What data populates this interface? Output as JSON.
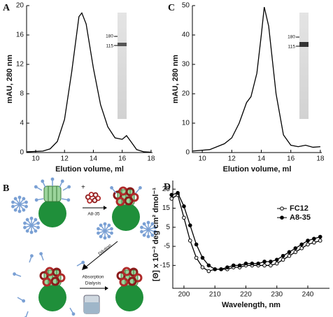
{
  "chart_data": [
    {
      "panel": "A",
      "type": "line",
      "xlabel": "Elution volume, ml",
      "ylabel": "mAU, 280 nm",
      "annotations": [
        "180",
        "115"
      ],
      "x": [
        9.4,
        10.5,
        11,
        11.5,
        12,
        12.5,
        13,
        13.2,
        13.5,
        14,
        14.5,
        15,
        15.5,
        16,
        16.3,
        16.6,
        17,
        17.5,
        18
      ],
      "values": [
        0.1,
        0.2,
        0.5,
        1.5,
        4.5,
        11,
        18.5,
        19,
        17.5,
        11.5,
        6.5,
        3.5,
        2,
        1.8,
        2.3,
        1.5,
        0.4,
        0.1,
        0.05
      ],
      "color": "#000000",
      "xlim": [
        9.37,
        18.1
      ],
      "ylim": [
        0,
        20
      ],
      "xticks": [
        10,
        12,
        14,
        16,
        18
      ],
      "yticks": [
        0,
        4,
        8,
        12,
        16,
        20
      ]
    },
    {
      "panel": "C",
      "type": "line",
      "xlabel": "Elution volume, ml",
      "ylabel": "mAU, 280 nm",
      "annotations": [
        "180",
        "115"
      ],
      "x": [
        9.33,
        10.5,
        11.5,
        12,
        12.5,
        13,
        13.3,
        13.7,
        14,
        14.2,
        14.5,
        15,
        15.5,
        16,
        16.5,
        17,
        17.5,
        18
      ],
      "values": [
        0.5,
        1,
        3,
        5,
        10,
        17,
        19,
        27,
        40,
        49.5,
        43,
        20,
        6,
        2.5,
        2,
        2.5,
        1.8,
        2
      ],
      "color": "#000000",
      "xlim": [
        9.33,
        18.1
      ],
      "ylim": [
        0,
        50
      ],
      "xticks": [
        10,
        12,
        14,
        16,
        18
      ],
      "yticks": [
        0,
        10,
        20,
        30,
        40,
        50
      ]
    },
    {
      "panel": "D",
      "type": "line",
      "xlabel": "Wavelength, nm",
      "ylabel": "[Θ] x 10⁻³ deg cm² dmol⁻¹",
      "x": [
        196,
        198,
        200,
        202,
        204,
        206,
        208,
        210,
        212,
        214,
        216,
        218,
        220,
        222,
        224,
        226,
        228,
        230,
        232,
        234,
        236,
        238,
        240,
        242,
        244
      ],
      "series": [
        {
          "name": "FC12",
          "color": "#000000",
          "marker": "open_circle",
          "values": [
            20,
            22,
            10,
            -2,
            -11,
            -16,
            -18,
            -17,
            -17,
            -17,
            -16,
            -16,
            -15,
            -15,
            -15,
            -15,
            -15,
            -14,
            -12,
            -10,
            -8,
            -6,
            -4,
            -3,
            -2
          ]
        },
        {
          "name": "A8-35",
          "color": "#000000",
          "marker": "filled_circle",
          "values": [
            22,
            23,
            16,
            6,
            -4,
            -11,
            -15,
            -17,
            -17,
            -16,
            -15,
            -15,
            -14,
            -14,
            -14,
            -13,
            -13,
            -12,
            -10,
            -8,
            -6,
            -4,
            -2,
            -1,
            0
          ]
        }
      ],
      "xlim": [
        196.4,
        247
      ],
      "ylim": [
        -27,
        29.5
      ],
      "xticks": [
        200,
        210,
        220,
        230,
        240
      ],
      "yticks": [
        -15,
        -5,
        5,
        15,
        25
      ]
    }
  ],
  "diagram": {
    "panel": "B",
    "plus": "+",
    "reagent": "A8-35",
    "step1": "Dilution",
    "step2a": "Absorption",
    "step2b": "Dialysis"
  }
}
